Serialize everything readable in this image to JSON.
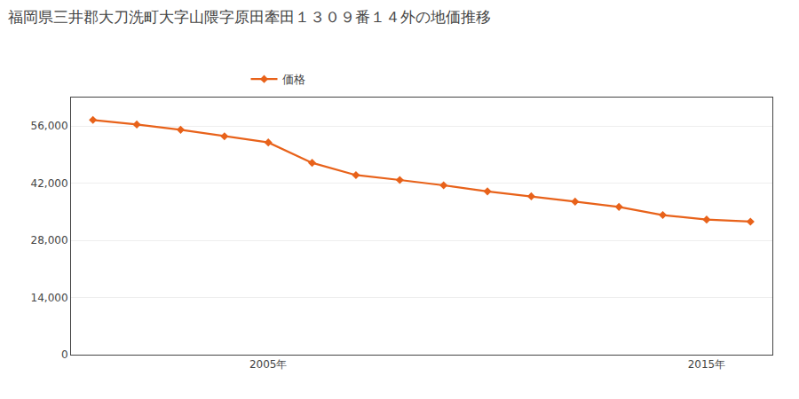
{
  "chart_data": {
    "type": "line",
    "title": "福岡県三井郡大刀洗町大字山隈字原田牽田１３０９番１４外の地価推移",
    "x": [
      2001,
      2002,
      2003,
      2004,
      2005,
      2006,
      2007,
      2008,
      2009,
      2010,
      2011,
      2012,
      2013,
      2014,
      2015,
      2016
    ],
    "series": [
      {
        "name": "価格",
        "color": "#E8621A",
        "marker": "diamond",
        "values": [
          57500,
          56400,
          55100,
          53500,
          52000,
          47000,
          44000,
          42800,
          41500,
          40000,
          38800,
          37500,
          36200,
          34200,
          33100,
          32600
        ]
      }
    ],
    "xlim": [
      2000.5,
      2016.5
    ],
    "xticks": [
      {
        "value": 2005,
        "label": "2005年"
      },
      {
        "value": 2015,
        "label": "2015年"
      }
    ],
    "ylim": [
      0,
      63000
    ],
    "yticks": [
      0,
      {
        "value": 14000,
        "label": "14,000"
      },
      {
        "value": 28000,
        "label": "28,000"
      },
      {
        "value": 42000,
        "label": "42,000"
      },
      {
        "value": 56000,
        "label": "56,000"
      }
    ],
    "grid": "y",
    "legend": "top"
  }
}
